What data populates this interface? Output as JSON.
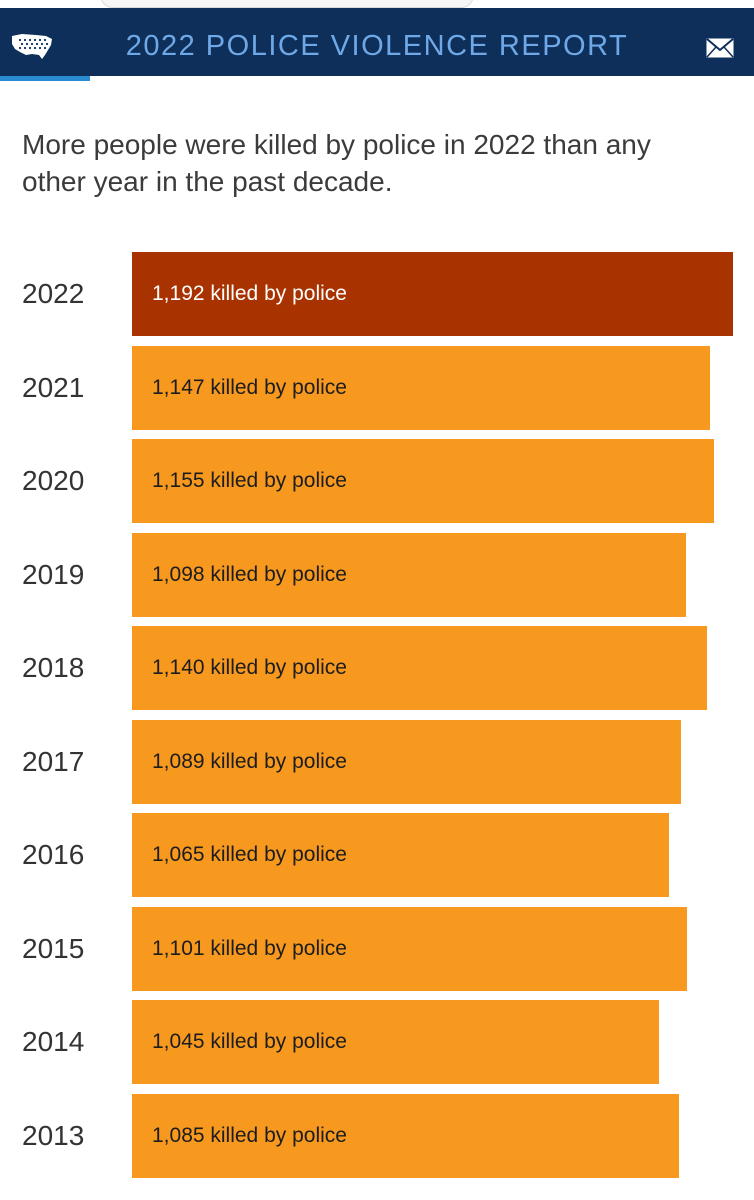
{
  "header": {
    "title": "2022 POLICE VIOLENCE REPORT",
    "logo_icon": "usa-map-icon",
    "mail_icon": "mail-icon",
    "background": "#0e2f5a",
    "title_color": "#6fa8e6"
  },
  "subtitle": "More people were killed by police in 2022 than any other year in the past decade.",
  "chart_data": {
    "type": "bar",
    "orientation": "horizontal",
    "categories": [
      "2022",
      "2021",
      "2020",
      "2019",
      "2018",
      "2017",
      "2016",
      "2015",
      "2014",
      "2013"
    ],
    "values": [
      1192,
      1147,
      1155,
      1098,
      1140,
      1089,
      1065,
      1101,
      1045,
      1085
    ],
    "labels": [
      "1,192 killed by police",
      "1,147 killed by police",
      "1,155 killed by police",
      "1,098 killed by police",
      "1,140 killed by police",
      "1,089 killed by police",
      "1,065 killed by police",
      "1,101 killed by police",
      "1,045 killed by police",
      "1,085 killed by police"
    ],
    "highlight": "2022",
    "colors": {
      "default": "#f7981f",
      "highlight": "#a83300"
    },
    "title": "",
    "xlabel": "",
    "ylabel": "",
    "grid": false
  }
}
